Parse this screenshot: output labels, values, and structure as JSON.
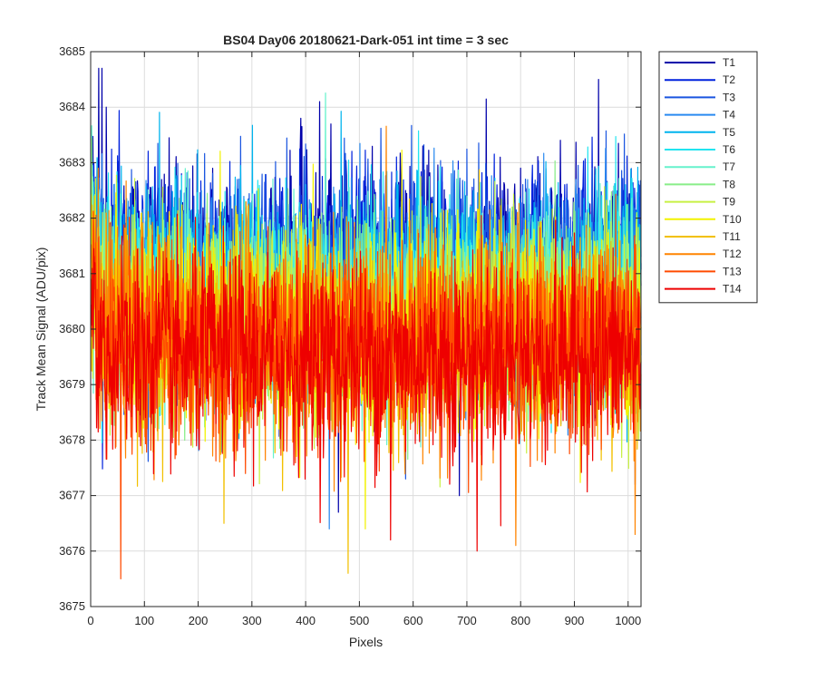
{
  "chart_data": {
    "type": "line",
    "title": "BS04 Day06 20180621-Dark-051 int time = 3 sec",
    "xlabel": "Pixels",
    "ylabel": "Track Mean Signal (ADU/pix)",
    "xlim": [
      0,
      1024
    ],
    "ylim": [
      3675,
      3685
    ],
    "xticks": [
      0,
      100,
      200,
      300,
      400,
      500,
      600,
      700,
      800,
      900,
      1000
    ],
    "yticks": [
      3675,
      3676,
      3677,
      3678,
      3679,
      3680,
      3681,
      3682,
      3683,
      3684,
      3685
    ],
    "grid": true,
    "legend_position": "outside-top-right",
    "num_points": 1024,
    "series": [
      {
        "name": "T1",
        "color": "#0000AA",
        "mean": 3681.2,
        "spread": 0.9,
        "highlights": [
          [
            14,
            3684.7
          ],
          [
            20,
            3684.7
          ],
          [
            28,
            3684.0
          ],
          [
            425,
            3684.1
          ],
          [
            944,
            3684.5
          ],
          [
            390,
            3683.8
          ],
          [
            460,
            3676.7
          ],
          [
            685,
            3677.0
          ],
          [
            1012,
            3677.2
          ]
        ]
      },
      {
        "name": "T2",
        "color": "#0022DD",
        "mean": 3681.1,
        "spread": 0.9,
        "highlights": []
      },
      {
        "name": "T3",
        "color": "#1A55E0",
        "mean": 3681.0,
        "spread": 0.9,
        "highlights": [
          [
            585,
            3677.3
          ]
        ]
      },
      {
        "name": "T4",
        "color": "#2A8AF0",
        "mean": 3680.8,
        "spread": 0.9,
        "highlights": [
          [
            443,
            3676.4
          ]
        ]
      },
      {
        "name": "T5",
        "color": "#00B4EE",
        "mean": 3680.7,
        "spread": 0.9,
        "highlights": []
      },
      {
        "name": "T6",
        "color": "#22E4F0",
        "mean": 3680.6,
        "spread": 0.9,
        "highlights": []
      },
      {
        "name": "T7",
        "color": "#66F2CC",
        "mean": 3680.4,
        "spread": 0.9,
        "highlights": []
      },
      {
        "name": "T8",
        "color": "#88EE88",
        "mean": 3680.3,
        "spread": 0.9,
        "highlights": []
      },
      {
        "name": "T9",
        "color": "#C8F044",
        "mean": 3680.2,
        "spread": 0.9,
        "highlights": []
      },
      {
        "name": "T10",
        "color": "#F2F200",
        "mean": 3680.0,
        "spread": 0.9,
        "highlights": [
          [
            510,
            3676.4
          ]
        ]
      },
      {
        "name": "T11",
        "color": "#F2C000",
        "mean": 3679.9,
        "spread": 0.9,
        "highlights": [
          [
            478,
            3675.6
          ],
          [
            247,
            3676.5
          ]
        ]
      },
      {
        "name": "T12",
        "color": "#FF8400",
        "mean": 3679.8,
        "spread": 0.9,
        "highlights": [
          [
            790,
            3676.1
          ],
          [
            1012,
            3676.3
          ]
        ]
      },
      {
        "name": "T13",
        "color": "#FF4A00",
        "mean": 3679.7,
        "spread": 0.9,
        "highlights": [
          [
            55,
            3675.5
          ]
        ]
      },
      {
        "name": "T14",
        "color": "#EE0000",
        "mean": 3679.5,
        "spread": 0.9,
        "highlights": [
          [
            718,
            3676.0
          ],
          [
            557,
            3676.2
          ]
        ]
      }
    ]
  }
}
